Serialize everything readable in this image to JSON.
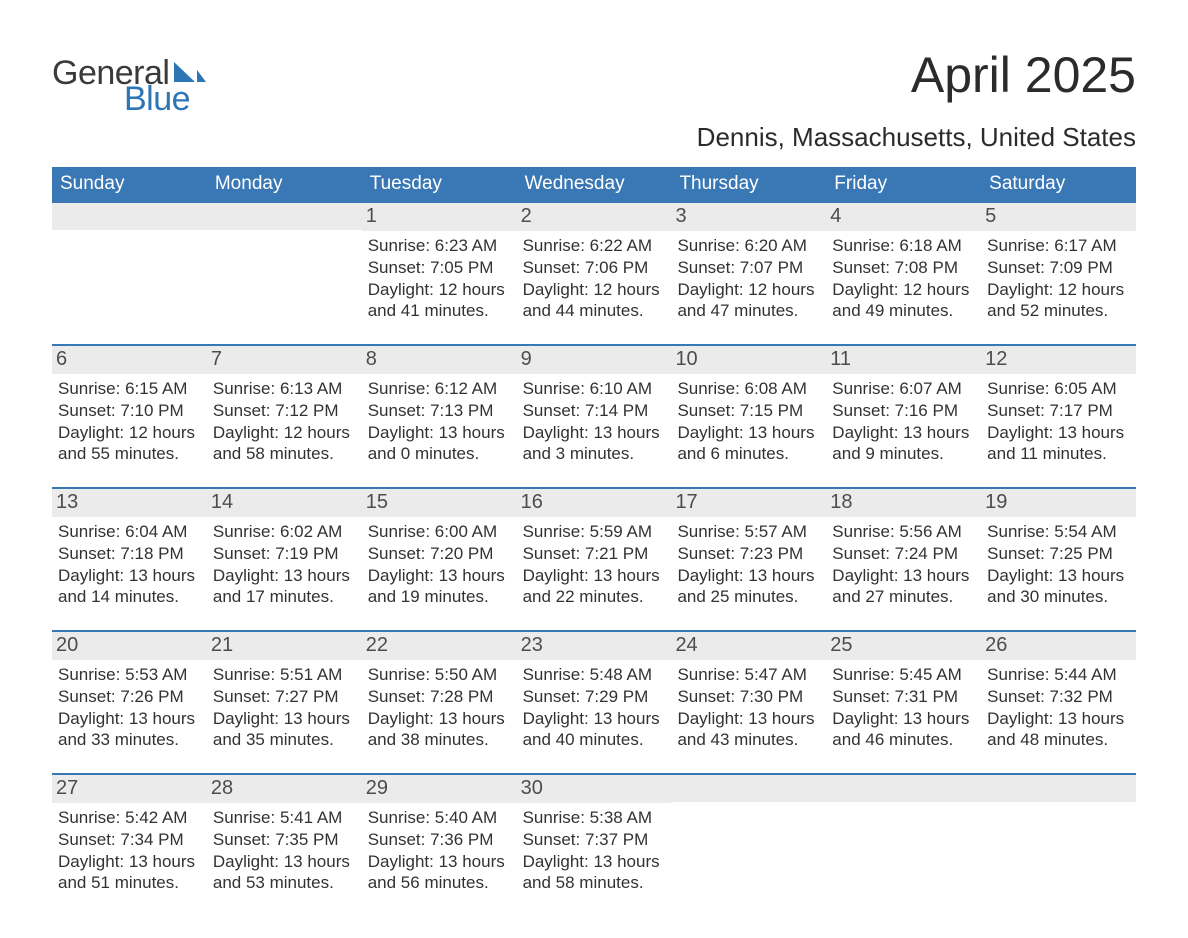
{
  "logo": {
    "word1": "General",
    "word2": "Blue",
    "sail_color": "#2e75b6",
    "text1_color": "#3a3a3a"
  },
  "title": "April 2025",
  "subtitle": "Dennis, Massachusetts, United States",
  "colors": {
    "header_bg": "#3a77b5",
    "header_text": "#ffffff",
    "daynum_bg": "#ebebeb",
    "daynum_text": "#4d4d4d",
    "body_text": "#323232",
    "rule": "#3a77b5",
    "page_bg": "#ffffff"
  },
  "fonts": {
    "title_size_pt": 38,
    "subtitle_size_pt": 20,
    "dayhead_size_pt": 14,
    "daynum_size_pt": 15,
    "info_size_pt": 13
  },
  "day_names": [
    "Sunday",
    "Monday",
    "Tuesday",
    "Wednesday",
    "Thursday",
    "Friday",
    "Saturday"
  ],
  "weeks": [
    [
      {
        "n": "",
        "sr": "",
        "ss": "",
        "dl": ""
      },
      {
        "n": "",
        "sr": "",
        "ss": "",
        "dl": ""
      },
      {
        "n": "1",
        "sr": "Sunrise: 6:23 AM",
        "ss": "Sunset: 7:05 PM",
        "dl": "Daylight: 12 hours and 41 minutes."
      },
      {
        "n": "2",
        "sr": "Sunrise: 6:22 AM",
        "ss": "Sunset: 7:06 PM",
        "dl": "Daylight: 12 hours and 44 minutes."
      },
      {
        "n": "3",
        "sr": "Sunrise: 6:20 AM",
        "ss": "Sunset: 7:07 PM",
        "dl": "Daylight: 12 hours and 47 minutes."
      },
      {
        "n": "4",
        "sr": "Sunrise: 6:18 AM",
        "ss": "Sunset: 7:08 PM",
        "dl": "Daylight: 12 hours and 49 minutes."
      },
      {
        "n": "5",
        "sr": "Sunrise: 6:17 AM",
        "ss": "Sunset: 7:09 PM",
        "dl": "Daylight: 12 hours and 52 minutes."
      }
    ],
    [
      {
        "n": "6",
        "sr": "Sunrise: 6:15 AM",
        "ss": "Sunset: 7:10 PM",
        "dl": "Daylight: 12 hours and 55 minutes."
      },
      {
        "n": "7",
        "sr": "Sunrise: 6:13 AM",
        "ss": "Sunset: 7:12 PM",
        "dl": "Daylight: 12 hours and 58 minutes."
      },
      {
        "n": "8",
        "sr": "Sunrise: 6:12 AM",
        "ss": "Sunset: 7:13 PM",
        "dl": "Daylight: 13 hours and 0 minutes."
      },
      {
        "n": "9",
        "sr": "Sunrise: 6:10 AM",
        "ss": "Sunset: 7:14 PM",
        "dl": "Daylight: 13 hours and 3 minutes."
      },
      {
        "n": "10",
        "sr": "Sunrise: 6:08 AM",
        "ss": "Sunset: 7:15 PM",
        "dl": "Daylight: 13 hours and 6 minutes."
      },
      {
        "n": "11",
        "sr": "Sunrise: 6:07 AM",
        "ss": "Sunset: 7:16 PM",
        "dl": "Daylight: 13 hours and 9 minutes."
      },
      {
        "n": "12",
        "sr": "Sunrise: 6:05 AM",
        "ss": "Sunset: 7:17 PM",
        "dl": "Daylight: 13 hours and 11 minutes."
      }
    ],
    [
      {
        "n": "13",
        "sr": "Sunrise: 6:04 AM",
        "ss": "Sunset: 7:18 PM",
        "dl": "Daylight: 13 hours and 14 minutes."
      },
      {
        "n": "14",
        "sr": "Sunrise: 6:02 AM",
        "ss": "Sunset: 7:19 PM",
        "dl": "Daylight: 13 hours and 17 minutes."
      },
      {
        "n": "15",
        "sr": "Sunrise: 6:00 AM",
        "ss": "Sunset: 7:20 PM",
        "dl": "Daylight: 13 hours and 19 minutes."
      },
      {
        "n": "16",
        "sr": "Sunrise: 5:59 AM",
        "ss": "Sunset: 7:21 PM",
        "dl": "Daylight: 13 hours and 22 minutes."
      },
      {
        "n": "17",
        "sr": "Sunrise: 5:57 AM",
        "ss": "Sunset: 7:23 PM",
        "dl": "Daylight: 13 hours and 25 minutes."
      },
      {
        "n": "18",
        "sr": "Sunrise: 5:56 AM",
        "ss": "Sunset: 7:24 PM",
        "dl": "Daylight: 13 hours and 27 minutes."
      },
      {
        "n": "19",
        "sr": "Sunrise: 5:54 AM",
        "ss": "Sunset: 7:25 PM",
        "dl": "Daylight: 13 hours and 30 minutes."
      }
    ],
    [
      {
        "n": "20",
        "sr": "Sunrise: 5:53 AM",
        "ss": "Sunset: 7:26 PM",
        "dl": "Daylight: 13 hours and 33 minutes."
      },
      {
        "n": "21",
        "sr": "Sunrise: 5:51 AM",
        "ss": "Sunset: 7:27 PM",
        "dl": "Daylight: 13 hours and 35 minutes."
      },
      {
        "n": "22",
        "sr": "Sunrise: 5:50 AM",
        "ss": "Sunset: 7:28 PM",
        "dl": "Daylight: 13 hours and 38 minutes."
      },
      {
        "n": "23",
        "sr": "Sunrise: 5:48 AM",
        "ss": "Sunset: 7:29 PM",
        "dl": "Daylight: 13 hours and 40 minutes."
      },
      {
        "n": "24",
        "sr": "Sunrise: 5:47 AM",
        "ss": "Sunset: 7:30 PM",
        "dl": "Daylight: 13 hours and 43 minutes."
      },
      {
        "n": "25",
        "sr": "Sunrise: 5:45 AM",
        "ss": "Sunset: 7:31 PM",
        "dl": "Daylight: 13 hours and 46 minutes."
      },
      {
        "n": "26",
        "sr": "Sunrise: 5:44 AM",
        "ss": "Sunset: 7:32 PM",
        "dl": "Daylight: 13 hours and 48 minutes."
      }
    ],
    [
      {
        "n": "27",
        "sr": "Sunrise: 5:42 AM",
        "ss": "Sunset: 7:34 PM",
        "dl": "Daylight: 13 hours and 51 minutes."
      },
      {
        "n": "28",
        "sr": "Sunrise: 5:41 AM",
        "ss": "Sunset: 7:35 PM",
        "dl": "Daylight: 13 hours and 53 minutes."
      },
      {
        "n": "29",
        "sr": "Sunrise: 5:40 AM",
        "ss": "Sunset: 7:36 PM",
        "dl": "Daylight: 13 hours and 56 minutes."
      },
      {
        "n": "30",
        "sr": "Sunrise: 5:38 AM",
        "ss": "Sunset: 7:37 PM",
        "dl": "Daylight: 13 hours and 58 minutes."
      },
      {
        "n": "",
        "sr": "",
        "ss": "",
        "dl": ""
      },
      {
        "n": "",
        "sr": "",
        "ss": "",
        "dl": ""
      },
      {
        "n": "",
        "sr": "",
        "ss": "",
        "dl": ""
      }
    ]
  ]
}
